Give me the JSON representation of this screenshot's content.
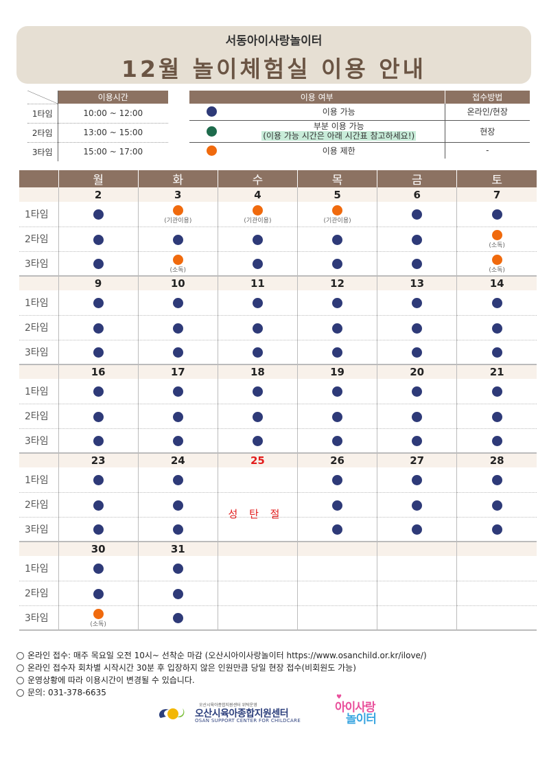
{
  "header": {
    "subtitle": "서동아이사랑놀이터",
    "title": "12월 놀이체험실 이용 안내"
  },
  "time_table": {
    "header": "이용시간",
    "rows": [
      {
        "type": "1타임",
        "time": "10:00 ~ 12:00"
      },
      {
        "type": "2타임",
        "time": "13:00 ~ 15:00"
      },
      {
        "type": "3타임",
        "time": "15:00 ~ 17:00"
      }
    ]
  },
  "usage_legend": {
    "header_status": "이용 여부",
    "header_method": "접수방법",
    "rows": [
      {
        "color": "#2e3a78",
        "label": "이용 가능",
        "note": "",
        "method": "온라인/현장"
      },
      {
        "color": "#1e6b4c",
        "label": "부분 이용 가능",
        "note": "(이용 가능 시간은 아래 시간표 참고하세요!)",
        "method": "현장"
      },
      {
        "color": "#f06a0d",
        "label": "이용 제한",
        "note": "",
        "method": "-"
      }
    ]
  },
  "calendar": {
    "weekdays": [
      "월",
      "화",
      "수",
      "목",
      "금",
      "토"
    ],
    "slot_labels": [
      "1타임",
      "2타임",
      "3타임"
    ],
    "legend_colors": {
      "B": "#2e3a78",
      "O": "#f06a0d"
    },
    "weeks": [
      {
        "dates": [
          "2",
          "3",
          "4",
          "5",
          "6",
          "7"
        ],
        "holiday_index": -1,
        "slots": [
          [
            "B",
            "O",
            "O",
            "O",
            "B",
            "B"
          ],
          [
            "B",
            "B",
            "B",
            "B",
            "B",
            "O"
          ],
          [
            "B",
            "O",
            "B",
            "B",
            "B",
            "O"
          ]
        ],
        "notes": [
          [
            "",
            "(기관이용)",
            "(기관이용)",
            "(기관이용)",
            "",
            ""
          ],
          [
            "",
            "",
            "",
            "",
            "",
            "(소독)"
          ],
          [
            "",
            "(소독)",
            "",
            "",
            "",
            "(소독)"
          ]
        ]
      },
      {
        "dates": [
          "9",
          "10",
          "11",
          "12",
          "13",
          "14"
        ],
        "holiday_index": -1,
        "slots": [
          [
            "B",
            "B",
            "B",
            "B",
            "B",
            "B"
          ],
          [
            "B",
            "B",
            "B",
            "B",
            "B",
            "B"
          ],
          [
            "B",
            "B",
            "B",
            "B",
            "B",
            "B"
          ]
        ],
        "notes": [
          [
            "",
            "",
            "",
            "",
            "",
            ""
          ],
          [
            "",
            "",
            "",
            "",
            "",
            ""
          ],
          [
            "",
            "",
            "",
            "",
            "",
            ""
          ]
        ]
      },
      {
        "dates": [
          "16",
          "17",
          "18",
          "19",
          "20",
          "21"
        ],
        "holiday_index": -1,
        "slots": [
          [
            "B",
            "B",
            "B",
            "B",
            "B",
            "B"
          ],
          [
            "B",
            "B",
            "B",
            "B",
            "B",
            "B"
          ],
          [
            "B",
            "B",
            "B",
            "B",
            "B",
            "B"
          ]
        ],
        "notes": [
          [
            "",
            "",
            "",
            "",
            "",
            ""
          ],
          [
            "",
            "",
            "",
            "",
            "",
            ""
          ],
          [
            "",
            "",
            "",
            "",
            "",
            ""
          ]
        ]
      },
      {
        "dates": [
          "23",
          "24",
          "25",
          "26",
          "27",
          "28"
        ],
        "holiday_index": 2,
        "slots": [
          [
            "B",
            "B",
            "",
            "B",
            "B",
            "B"
          ],
          [
            "B",
            "B",
            "",
            "B",
            "B",
            "B"
          ],
          [
            "B",
            "B",
            "",
            "B",
            "B",
            "B"
          ]
        ],
        "notes": [
          [
            "",
            "",
            "",
            "",
            "",
            ""
          ],
          [
            "",
            "",
            "",
            "",
            "",
            ""
          ],
          [
            "",
            "",
            "",
            "",
            "",
            ""
          ]
        ]
      },
      {
        "dates": [
          "30",
          "31",
          "",
          "",
          "",
          ""
        ],
        "holiday_index": -1,
        "slots": [
          [
            "B",
            "B",
            "",
            "",
            "",
            ""
          ],
          [
            "B",
            "B",
            "",
            "",
            "",
            ""
          ],
          [
            "O",
            "B",
            "",
            "",
            "",
            ""
          ]
        ],
        "notes": [
          [
            "",
            "",
            "",
            "",
            "",
            ""
          ],
          [
            "",
            "",
            "",
            "",
            "",
            ""
          ],
          [
            "(소독)",
            "",
            "",
            "",
            "",
            ""
          ]
        ]
      }
    ],
    "holiday_label": "성 탄 절"
  },
  "notes": [
    "온라인 접수: 매주 목요일 오전 10시~ 선착순 마감 (오산시아이사랑놀이터 https://www.osanchild.or.kr/ilove/)",
    "온라인 접수자 회차별 시작시간 30분 후 입장하지 않은 인원만큼 당일 현장 접수(비회원도 가능)",
    "운영상황에 따라 이용시간이 변경될 수 있습니다.",
    "문의: 031-378-6635"
  ],
  "footer": {
    "org_small": "오산시육아종합지원센터 위탁운영",
    "org_name": "오산시육아종합지원센터",
    "org_en": "OSAN SUPPORT CENTER FOR CHILDCARE",
    "brand_line1": "아이사랑",
    "brand_line2": "놀이터"
  }
}
